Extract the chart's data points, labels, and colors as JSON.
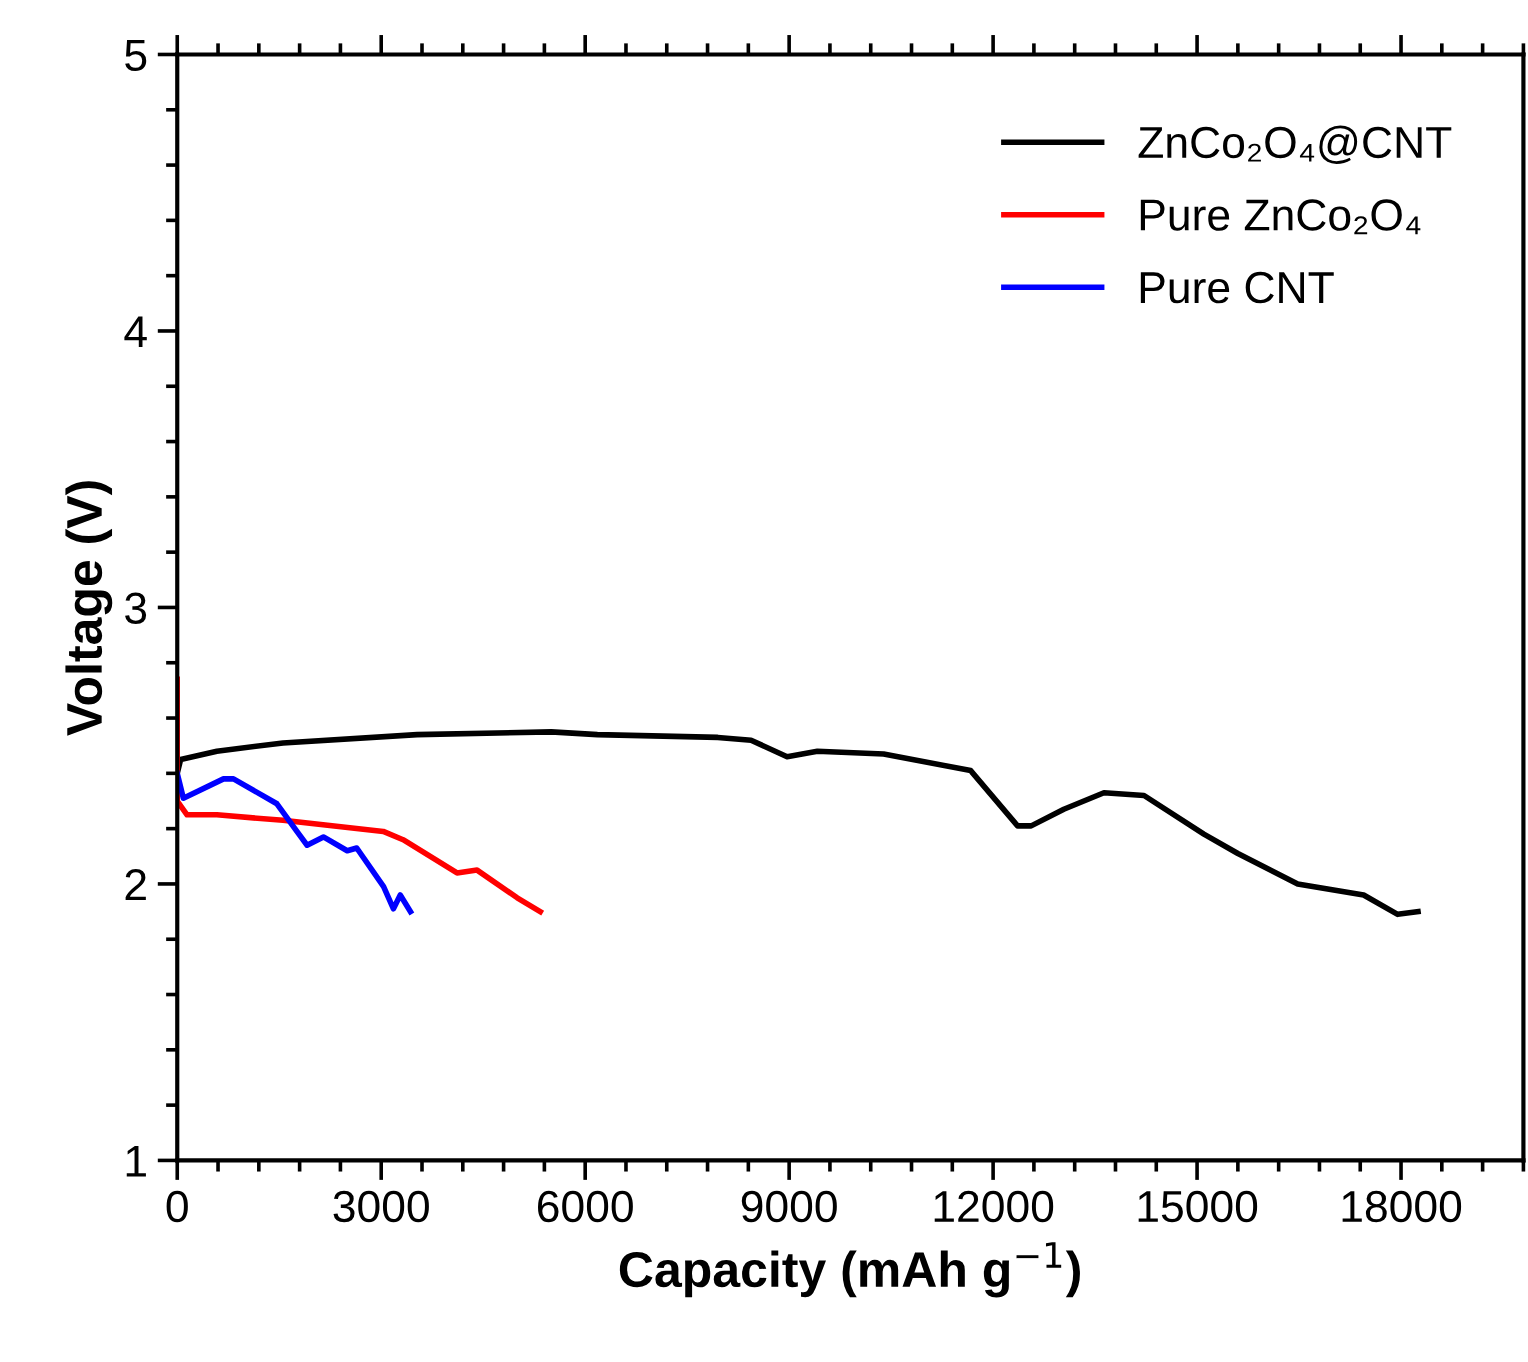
{
  "chart_data": {
    "type": "line",
    "xlabel": "Capacity (mAh g$^{−1}$)",
    "ylabel": "Voltage (V)",
    "xlim": [
      0,
      19800
    ],
    "ylim": [
      1,
      5
    ],
    "xticks": [
      0,
      3000,
      6000,
      9000,
      12000,
      15000,
      18000
    ],
    "yticks": [
      1,
      2,
      3,
      4,
      5
    ],
    "grid": false,
    "legend": "top right",
    "line_style": "solid",
    "marker": "none",
    "series": [
      {
        "name": "ZnCo₂O₄@CNT",
        "color": "#000000",
        "x": [
          0,
          50,
          583,
          1555,
          3527,
          5500,
          6180,
          7950,
          8440,
          8970,
          9415,
          10390,
          11670,
          12360,
          12560,
          13040,
          13630,
          14220,
          15100,
          15600,
          16480,
          17450,
          17950,
          18250
        ],
        "values": [
          2.4,
          2.45,
          2.48,
          2.51,
          2.54,
          2.55,
          2.54,
          2.53,
          2.52,
          2.46,
          2.48,
          2.47,
          2.41,
          2.21,
          2.21,
          2.27,
          2.33,
          2.32,
          2.18,
          2.11,
          2.0,
          1.96,
          1.89,
          1.9
        ]
      },
      {
        "name": "Pure ZnCo₂O₄",
        "color": "#ff0000",
        "x": [
          0,
          0,
          144,
          583,
          1555,
          3030,
          3322,
          4115,
          4410,
          5000,
          5340
        ],
        "values": [
          2.74,
          2.3,
          2.25,
          2.25,
          2.23,
          2.19,
          2.16,
          2.04,
          2.05,
          1.95,
          1.9
        ]
      },
      {
        "name": "Pure CNT",
        "color": "#0000ff",
        "x": [
          0,
          90,
          680,
          827,
          1466,
          1760,
          1910,
          2150,
          2500,
          2640,
          3035,
          3180,
          3280,
          3430
        ],
        "values": [
          2.4,
          2.31,
          2.38,
          2.38,
          2.29,
          2.19,
          2.14,
          2.17,
          2.12,
          2.13,
          1.99,
          1.91,
          1.96,
          1.9
        ]
      }
    ]
  }
}
